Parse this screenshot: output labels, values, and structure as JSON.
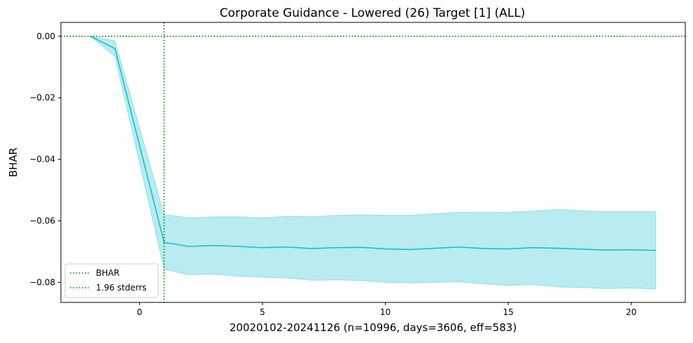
{
  "chart_data": {
    "type": "line",
    "title": "Corporate Guidance - Lowered (26) Target [1] (ALL)",
    "xlabel": "20020102-20241126 (n=10996, days=3606, eff=583)",
    "ylabel": "BHAR",
    "xlim": [
      -3.2,
      22.2
    ],
    "ylim": [
      -0.0865,
      0.0045
    ],
    "x_ticks": [
      0,
      5,
      10,
      15,
      20
    ],
    "y_ticks": [
      0.0,
      -0.02,
      -0.04,
      -0.06,
      -0.08
    ],
    "x_tick_labels": [
      "0",
      "5",
      "10",
      "15",
      "20"
    ],
    "y_tick_labels": [
      "0.00",
      "−0.02",
      "−0.04",
      "−0.06",
      "−0.08"
    ],
    "grid": false,
    "legend_position": "lower-left",
    "x": [
      -2,
      -1,
      1,
      2,
      3,
      4,
      5,
      6,
      7,
      8,
      9,
      10,
      11,
      12,
      13,
      14,
      15,
      16,
      17,
      18,
      19,
      20,
      21
    ],
    "series": [
      {
        "values": [
          0.0,
          -0.004,
          -0.067,
          -0.0683,
          -0.068,
          -0.0683,
          -0.0687,
          -0.0685,
          -0.069,
          -0.0687,
          -0.0686,
          -0.0691,
          -0.0693,
          -0.0689,
          -0.0685,
          -0.069,
          -0.0691,
          -0.0687,
          -0.0689,
          -0.0692,
          -0.0695,
          -0.0694,
          -0.0696
        ],
        "color": "#17becf"
      }
    ],
    "band": {
      "upper": [
        0.0,
        -0.0015,
        -0.058,
        -0.059,
        -0.0587,
        -0.0587,
        -0.059,
        -0.0585,
        -0.0587,
        -0.0582,
        -0.058,
        -0.0582,
        -0.0582,
        -0.0577,
        -0.0572,
        -0.0573,
        -0.0572,
        -0.0568,
        -0.0563,
        -0.0567,
        -0.057,
        -0.057,
        -0.057
      ],
      "lower": [
        0.0,
        -0.0066,
        -0.0758,
        -0.0775,
        -0.0773,
        -0.078,
        -0.0783,
        -0.0786,
        -0.0793,
        -0.0792,
        -0.0794,
        -0.08,
        -0.0802,
        -0.08,
        -0.0798,
        -0.0805,
        -0.081,
        -0.0807,
        -0.0815,
        -0.0817,
        -0.082,
        -0.0818,
        -0.0822
      ],
      "color": "#17becf"
    },
    "reference_lines": {
      "horizontal_y": 0.0,
      "vertical_x": 1,
      "color": "#008000"
    },
    "legend": [
      {
        "label": "BHAR",
        "style": "dotted",
        "color": "#008000"
      },
      {
        "label": "1.96 stderrs",
        "style": "dotted",
        "color": "#008000"
      }
    ]
  }
}
